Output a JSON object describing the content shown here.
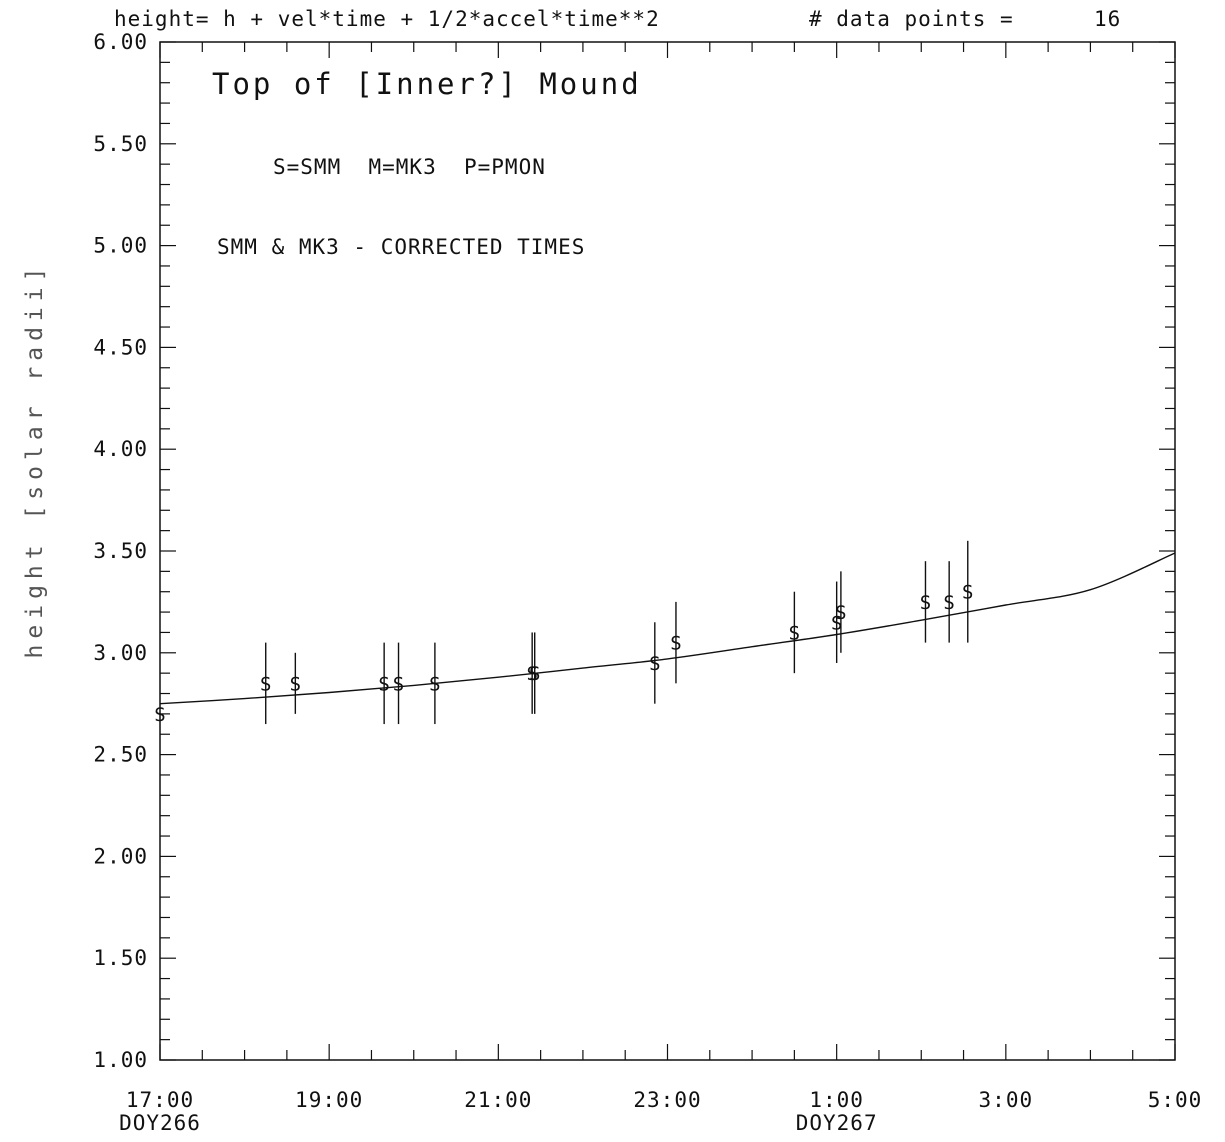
{
  "header": {
    "formula": "height= h + vel*time + 1/2*accel*time**2",
    "points_label": "# data points =",
    "points_count": "16"
  },
  "chart_data": {
    "type": "scatter",
    "title": "Top of [Inner?] Mound",
    "ylabel": "height [solar radii]",
    "ylim": [
      1.0,
      6.0
    ],
    "y_ticks": [
      "1.00",
      "1.50",
      "2.00",
      "2.50",
      "3.00",
      "3.50",
      "4.00",
      "4.50",
      "5.00",
      "5.50",
      "6.00"
    ],
    "xlim_hours": [
      17,
      29
    ],
    "x_ticks": [
      {
        "hour": 17,
        "label": "17:00",
        "sublabel": "DOY266"
      },
      {
        "hour": 19,
        "label": "19:00",
        "sublabel": ""
      },
      {
        "hour": 21,
        "label": "21:00",
        "sublabel": ""
      },
      {
        "hour": 23,
        "label": "23:00",
        "sublabel": ""
      },
      {
        "hour": 25,
        "label": "1:00",
        "sublabel": "DOY267"
      },
      {
        "hour": 27,
        "label": "3:00",
        "sublabel": ""
      },
      {
        "hour": 29,
        "label": "5:00",
        "sublabel": ""
      }
    ],
    "annotations": [
      "S=SMM  M=MK3  P=PMON",
      "SMM & MK3 - CORRECTED TIMES"
    ],
    "fit_curve": {
      "x": [
        17,
        18,
        19,
        20,
        21,
        22,
        23,
        24,
        25,
        26,
        27,
        28,
        29
      ],
      "y": [
        2.75,
        2.775,
        2.805,
        2.84,
        2.88,
        2.925,
        2.97,
        3.03,
        3.09,
        3.16,
        3.235,
        3.31,
        3.49
      ]
    },
    "points": [
      {
        "marker": "S",
        "x": 17.0,
        "y": 2.7,
        "err": 0.0
      },
      {
        "marker": "S",
        "x": 18.25,
        "y": 2.85,
        "err": 0.2
      },
      {
        "marker": "S",
        "x": 18.6,
        "y": 2.85,
        "err": 0.15
      },
      {
        "marker": "S",
        "x": 19.65,
        "y": 2.85,
        "err": 0.2
      },
      {
        "marker": "S",
        "x": 19.82,
        "y": 2.85,
        "err": 0.2
      },
      {
        "marker": "S",
        "x": 20.25,
        "y": 2.85,
        "err": 0.2
      },
      {
        "marker": "S",
        "x": 21.4,
        "y": 2.9,
        "err": 0.2
      },
      {
        "marker": "S",
        "x": 21.43,
        "y": 2.9,
        "err": 0.2
      },
      {
        "marker": "S",
        "x": 22.85,
        "y": 2.95,
        "err": 0.2
      },
      {
        "marker": "S",
        "x": 23.1,
        "y": 3.05,
        "err": 0.2
      },
      {
        "marker": "S",
        "x": 24.5,
        "y": 3.1,
        "err": 0.2
      },
      {
        "marker": "S",
        "x": 25.0,
        "y": 3.15,
        "err": 0.2
      },
      {
        "marker": "S",
        "x": 25.05,
        "y": 3.2,
        "err": 0.2
      },
      {
        "marker": "S",
        "x": 26.05,
        "y": 3.25,
        "err": 0.2
      },
      {
        "marker": "S",
        "x": 26.33,
        "y": 3.25,
        "err": 0.2
      },
      {
        "marker": "S",
        "x": 26.55,
        "y": 3.3,
        "err": 0.25
      }
    ],
    "grid": false,
    "legend": "none"
  }
}
